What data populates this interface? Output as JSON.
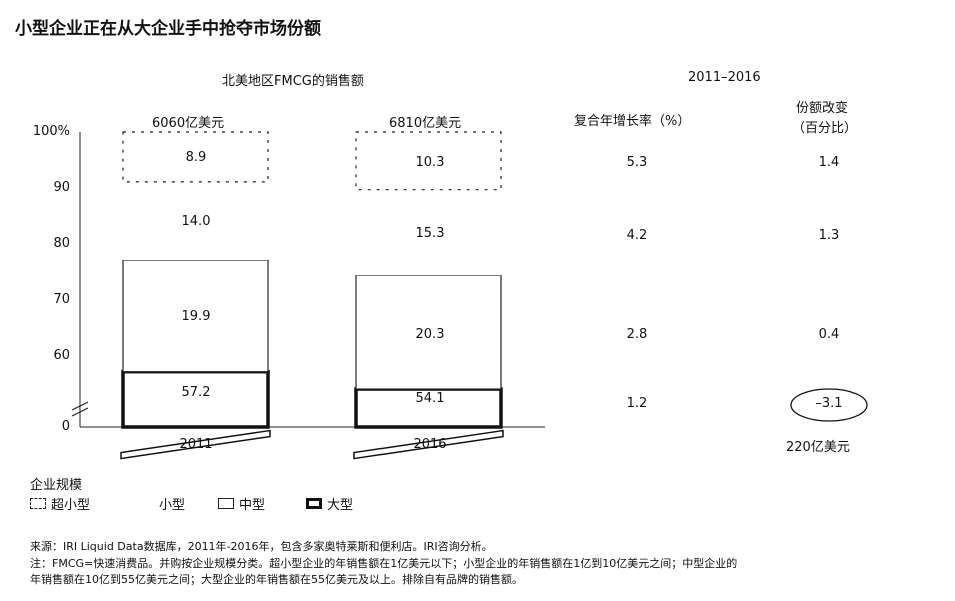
{
  "chart_data": {
    "type": "bar",
    "stacked": true,
    "title": "小型企业正在从大企业手中抢夺市场份额",
    "subtitle": "北美地区FMCG的销售额",
    "categories": [
      "2011",
      "2016"
    ],
    "totals": [
      "6060亿美元",
      "6810亿美元"
    ],
    "y_ticks": [
      "100%",
      "90",
      "80",
      "70",
      "60",
      "0"
    ],
    "axis_break": true,
    "series": [
      {
        "name": "大型",
        "values": [
          57.2,
          54.1
        ],
        "labels": [
          "57.2",
          "54.1"
        ]
      },
      {
        "name": "中型",
        "values": [
          19.9,
          20.3
        ],
        "labels": [
          "19.9",
          "20.3"
        ]
      },
      {
        "name": "小型",
        "values": [
          14.0,
          15.3
        ],
        "labels": [
          "14.0",
          "15.3"
        ]
      },
      {
        "name": "超小型",
        "values": [
          8.9,
          10.3
        ],
        "labels": [
          "8.9",
          "10.3"
        ]
      }
    ],
    "table": {
      "period": "2011–2016",
      "columns": [
        "复合年增长率（%）",
        "份额改变"
      ],
      "column2_sub": "（百分比）",
      "rows": [
        {
          "series": "超小型",
          "cagr": "5.3",
          "share_change": "1.4"
        },
        {
          "series": "小型",
          "cagr": "4.2",
          "share_change": "1.3"
        },
        {
          "series": "中型",
          "cagr": "2.8",
          "share_change": "0.4"
        },
        {
          "series": "大型",
          "cagr": "1.2",
          "share_change": "–3.1",
          "circled": true
        }
      ],
      "total_change": "220亿美元"
    },
    "legend": {
      "title": "企业规模",
      "items": [
        "超小型",
        "小型",
        "中型",
        "大型"
      ]
    },
    "grid": false
  },
  "notes": [
    "来源：IRI Liquid Data数据库，2011年-2016年，包含多家奥特莱斯和便利店。IRI咨询分析。",
    "注：FMCG=快速消费品。并购按企业规模分类。超小型企业的年销售额在1亿美元以下；小型企业的年销售额在1亿到10亿美元之间；中型企业的",
    "年销售额在10亿到55亿美元之间；大型企业的年销售额在55亿美元及以上。排除自有品牌的销售额。"
  ]
}
